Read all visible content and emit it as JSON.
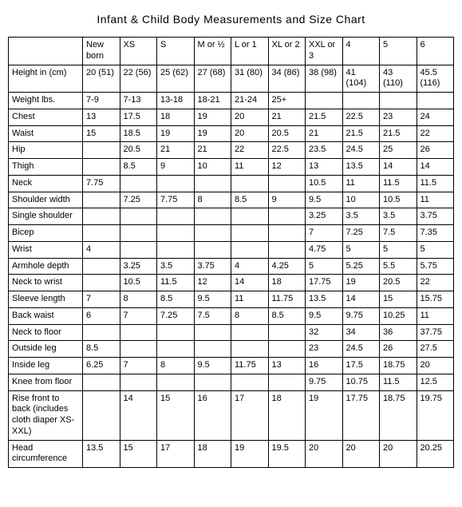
{
  "title": "Infant & Child Body Measurements and Size Chart",
  "columns": [
    "",
    "New born",
    "XS",
    "S",
    "M or ½",
    "L or 1",
    "XL or 2",
    "XXL or 3",
    "4",
    "5",
    "6"
  ],
  "rows": [
    {
      "label": "Height in (cm)",
      "cells": [
        "20 (51)",
        "22 (56)",
        "25 (62)",
        "27 (68)",
        "31 (80)",
        "34 (86)",
        "38 (98)",
        "41 (104)",
        "43 (110)",
        "45.5 (116)"
      ]
    },
    {
      "label": "Weight lbs.",
      "cells": [
        "7-9",
        "7-13",
        "13-18",
        "18-21",
        "21-24",
        "25+",
        "",
        "",
        "",
        ""
      ]
    },
    {
      "label": "Chest",
      "cells": [
        "13",
        "17.5",
        "18",
        "19",
        "20",
        "21",
        "21.5",
        "22.5",
        "23",
        "24"
      ]
    },
    {
      "label": "Waist",
      "cells": [
        "15",
        "18.5",
        "19",
        "19",
        "20",
        "20.5",
        "21",
        "21.5",
        "21.5",
        "22"
      ]
    },
    {
      "label": "Hip",
      "cells": [
        "",
        "20.5",
        "21",
        "21",
        "22",
        "22.5",
        "23.5",
        "24.5",
        "25",
        "26"
      ]
    },
    {
      "label": "Thigh",
      "cells": [
        "",
        "8.5",
        "9",
        "10",
        "11",
        "12",
        "13",
        "13.5",
        "14",
        "14"
      ]
    },
    {
      "label": "Neck",
      "cells": [
        "7.75",
        "",
        "",
        "",
        "",
        "",
        "10.5",
        "11",
        "11.5",
        "11.5"
      ]
    },
    {
      "label": "Shoulder width",
      "cells": [
        "",
        "7.25",
        "7.75",
        "8",
        "8.5",
        "9",
        "9.5",
        "10",
        "10.5",
        "11"
      ]
    },
    {
      "label": "Single shoulder",
      "cells": [
        "",
        "",
        "",
        "",
        "",
        "",
        "3.25",
        "3.5",
        "3.5",
        "3.75"
      ]
    },
    {
      "label": "Bicep",
      "cells": [
        "",
        "",
        "",
        "",
        "",
        "",
        "7",
        "7.25",
        "7.5",
        "7.35"
      ]
    },
    {
      "label": "Wrist",
      "cells": [
        "4",
        "",
        "",
        "",
        "",
        "",
        "4.75",
        "5",
        "5",
        "5"
      ]
    },
    {
      "label": "Armhole depth",
      "cells": [
        "",
        "3.25",
        "3.5",
        "3.75",
        "4",
        "4.25",
        "5",
        "5.25",
        "5.5",
        "5.75"
      ]
    },
    {
      "label": "Neck to wrist",
      "cells": [
        "",
        "10.5",
        "11.5",
        "12",
        "14",
        "18",
        "17.75",
        "19",
        "20.5",
        "22"
      ]
    },
    {
      "label": "Sleeve length",
      "cells": [
        "7",
        "8",
        "8.5",
        "9.5",
        "11",
        "11.75",
        "13.5",
        "14",
        "15",
        "15.75"
      ]
    },
    {
      "label": "Back waist",
      "cells": [
        "6",
        "7",
        "7.25",
        "7.5",
        "8",
        "8.5",
        "9.5",
        "9.75",
        "10.25",
        "11"
      ]
    },
    {
      "label": "Neck to floor",
      "cells": [
        "",
        "",
        "",
        "",
        "",
        "",
        "32",
        "34",
        "36",
        "37.75"
      ]
    },
    {
      "label": "Outside leg",
      "cells": [
        "8.5",
        "",
        "",
        "",
        "",
        "",
        "23",
        "24.5",
        "26",
        "27.5"
      ]
    },
    {
      "label": "Inside leg",
      "cells": [
        "6.25",
        "7",
        "8",
        "9.5",
        "11.75",
        "13",
        "16",
        "17.5",
        "18.75",
        "20"
      ]
    },
    {
      "label": "Knee from floor",
      "cells": [
        "",
        "",
        "",
        "",
        "",
        "",
        "9.75",
        "10.75",
        "11.5",
        "12.5"
      ]
    },
    {
      "label": "Rise front to back (includes cloth diaper XS-XXL)",
      "cells": [
        "",
        "14",
        "15",
        "16",
        "17",
        "18",
        "19",
        "17.75",
        "18.75",
        "19.75"
      ]
    },
    {
      "label": "Head circumference",
      "cells": [
        "13.5",
        "15",
        "17",
        "18",
        "19",
        "19.5",
        "20",
        "20",
        "20",
        "20.25"
      ]
    }
  ]
}
